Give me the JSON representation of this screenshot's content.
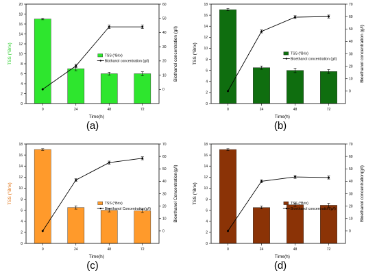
{
  "chart_data": [
    {
      "panel_label": "(a)",
      "type": "bar+line",
      "color": "#2ee62e",
      "categories": [
        "0",
        "24",
        "48",
        "72"
      ],
      "xlabel": "Time(h)",
      "ylabel_left": "TSS (°Brix)",
      "ylabel_left_color": "#22cc22",
      "ylabel_right": "Biothanol concentration (g/l)",
      "ylim_left": [
        0,
        20
      ],
      "yticks_left": [
        "0",
        "2",
        "4",
        "6",
        "8",
        "10",
        "12",
        "14",
        "16",
        "18",
        "20"
      ],
      "ylim_right": [
        -10,
        60
      ],
      "yticks_right": [
        "0",
        "10",
        "20",
        "30",
        "40",
        "50",
        "60"
      ],
      "series": [
        {
          "name": "TSS (°Brix)",
          "kind": "bar",
          "axis": "left",
          "values": [
            17.0,
            7.0,
            6.0,
            6.0
          ],
          "errors": [
            0.15,
            0.4,
            0.3,
            0.4
          ]
        },
        {
          "name": "Biothanol concentration (g/l)",
          "kind": "line",
          "axis": "right",
          "values": [
            0,
            16.5,
            44,
            44
          ],
          "errors": [
            0,
            1.2,
            1.2,
            1.2
          ]
        }
      ]
    },
    {
      "panel_label": "(b)",
      "type": "bar+line",
      "color": "#0f6e0f",
      "categories": [
        "0",
        "24",
        "48",
        "72"
      ],
      "xlabel": "Time(h)",
      "ylabel_left": "TSS (°Brix)",
      "ylabel_left_color": "#000000",
      "ylabel_right": "Bioethanol concentration (g/l)",
      "ylim_left": [
        0,
        18
      ],
      "yticks_left": [
        "0",
        "2",
        "4",
        "6",
        "8",
        "10",
        "12",
        "14",
        "16",
        "18"
      ],
      "ylim_right": [
        -10,
        70
      ],
      "yticks_right": [
        "0",
        "10",
        "20",
        "30",
        "40",
        "50",
        "60",
        "70"
      ],
      "series": [
        {
          "name": "TSS (°Brix)",
          "kind": "bar",
          "axis": "left",
          "values": [
            17.0,
            6.5,
            6.0,
            5.8
          ],
          "errors": [
            0.2,
            0.3,
            0.4,
            0.35
          ]
        },
        {
          "name": "Bioethanol concentration (g/l)",
          "kind": "line",
          "axis": "right",
          "values": [
            0,
            48,
            59.5,
            60
          ],
          "errors": [
            0,
            1.2,
            1.2,
            1.2
          ]
        }
      ]
    },
    {
      "panel_label": "(c)",
      "type": "bar+line",
      "color": "#ff9a2b",
      "categories": [
        "0",
        "24",
        "48",
        "72"
      ],
      "xlabel": "Time(h)",
      "ylabel_left": "TSS (°Brix)",
      "ylabel_left_color": "#e07010",
      "ylabel_right": "Bioethanol Concentration(g/l)",
      "ylim_left": [
        0,
        18
      ],
      "yticks_left": [
        "0",
        "2",
        "4",
        "6",
        "8",
        "10",
        "12",
        "14",
        "16",
        "18"
      ],
      "ylim_right": [
        -10,
        70
      ],
      "yticks_right": [
        "0",
        "10",
        "20",
        "30",
        "40",
        "50",
        "60",
        "70"
      ],
      "series": [
        {
          "name": "TSS (°Brix)",
          "kind": "bar",
          "axis": "left",
          "values": [
            17.0,
            6.5,
            6.0,
            5.9
          ],
          "errors": [
            0.15,
            0.3,
            0.3,
            0.3
          ]
        },
        {
          "name": "Bioethanol Concentration(g/l)",
          "kind": "line",
          "axis": "right",
          "values": [
            0,
            41,
            55,
            58.5
          ],
          "errors": [
            0,
            1.0,
            1.2,
            1.2
          ]
        }
      ]
    },
    {
      "panel_label": "(d)",
      "type": "bar+line",
      "color": "#8b3306",
      "categories": [
        "0",
        "24",
        "48",
        "72"
      ],
      "xlabel": "Time(h)",
      "ylabel_left": "TSS (°Brix)",
      "ylabel_left_color": "#000000",
      "ylabel_right": "Bioethanol concentration(g/l)",
      "ylim_left": [
        0,
        18
      ],
      "yticks_left": [
        "0",
        "2",
        "4",
        "6",
        "8",
        "10",
        "12",
        "14",
        "16",
        "18"
      ],
      "ylim_right": [
        -10,
        70
      ],
      "yticks_right": [
        "0",
        "10",
        "20",
        "30",
        "40",
        "50",
        "60",
        "70"
      ],
      "series": [
        {
          "name": "TSS (°Brix)",
          "kind": "bar",
          "axis": "left",
          "values": [
            17.0,
            6.5,
            7.0,
            6.9
          ],
          "errors": [
            0.15,
            0.25,
            0.3,
            0.35
          ]
        },
        {
          "name": "Bioethanol concentration(g/l)",
          "kind": "line",
          "axis": "right",
          "values": [
            0,
            40,
            43.5,
            43
          ],
          "errors": [
            0,
            1.2,
            1.2,
            1.2
          ]
        }
      ]
    }
  ]
}
